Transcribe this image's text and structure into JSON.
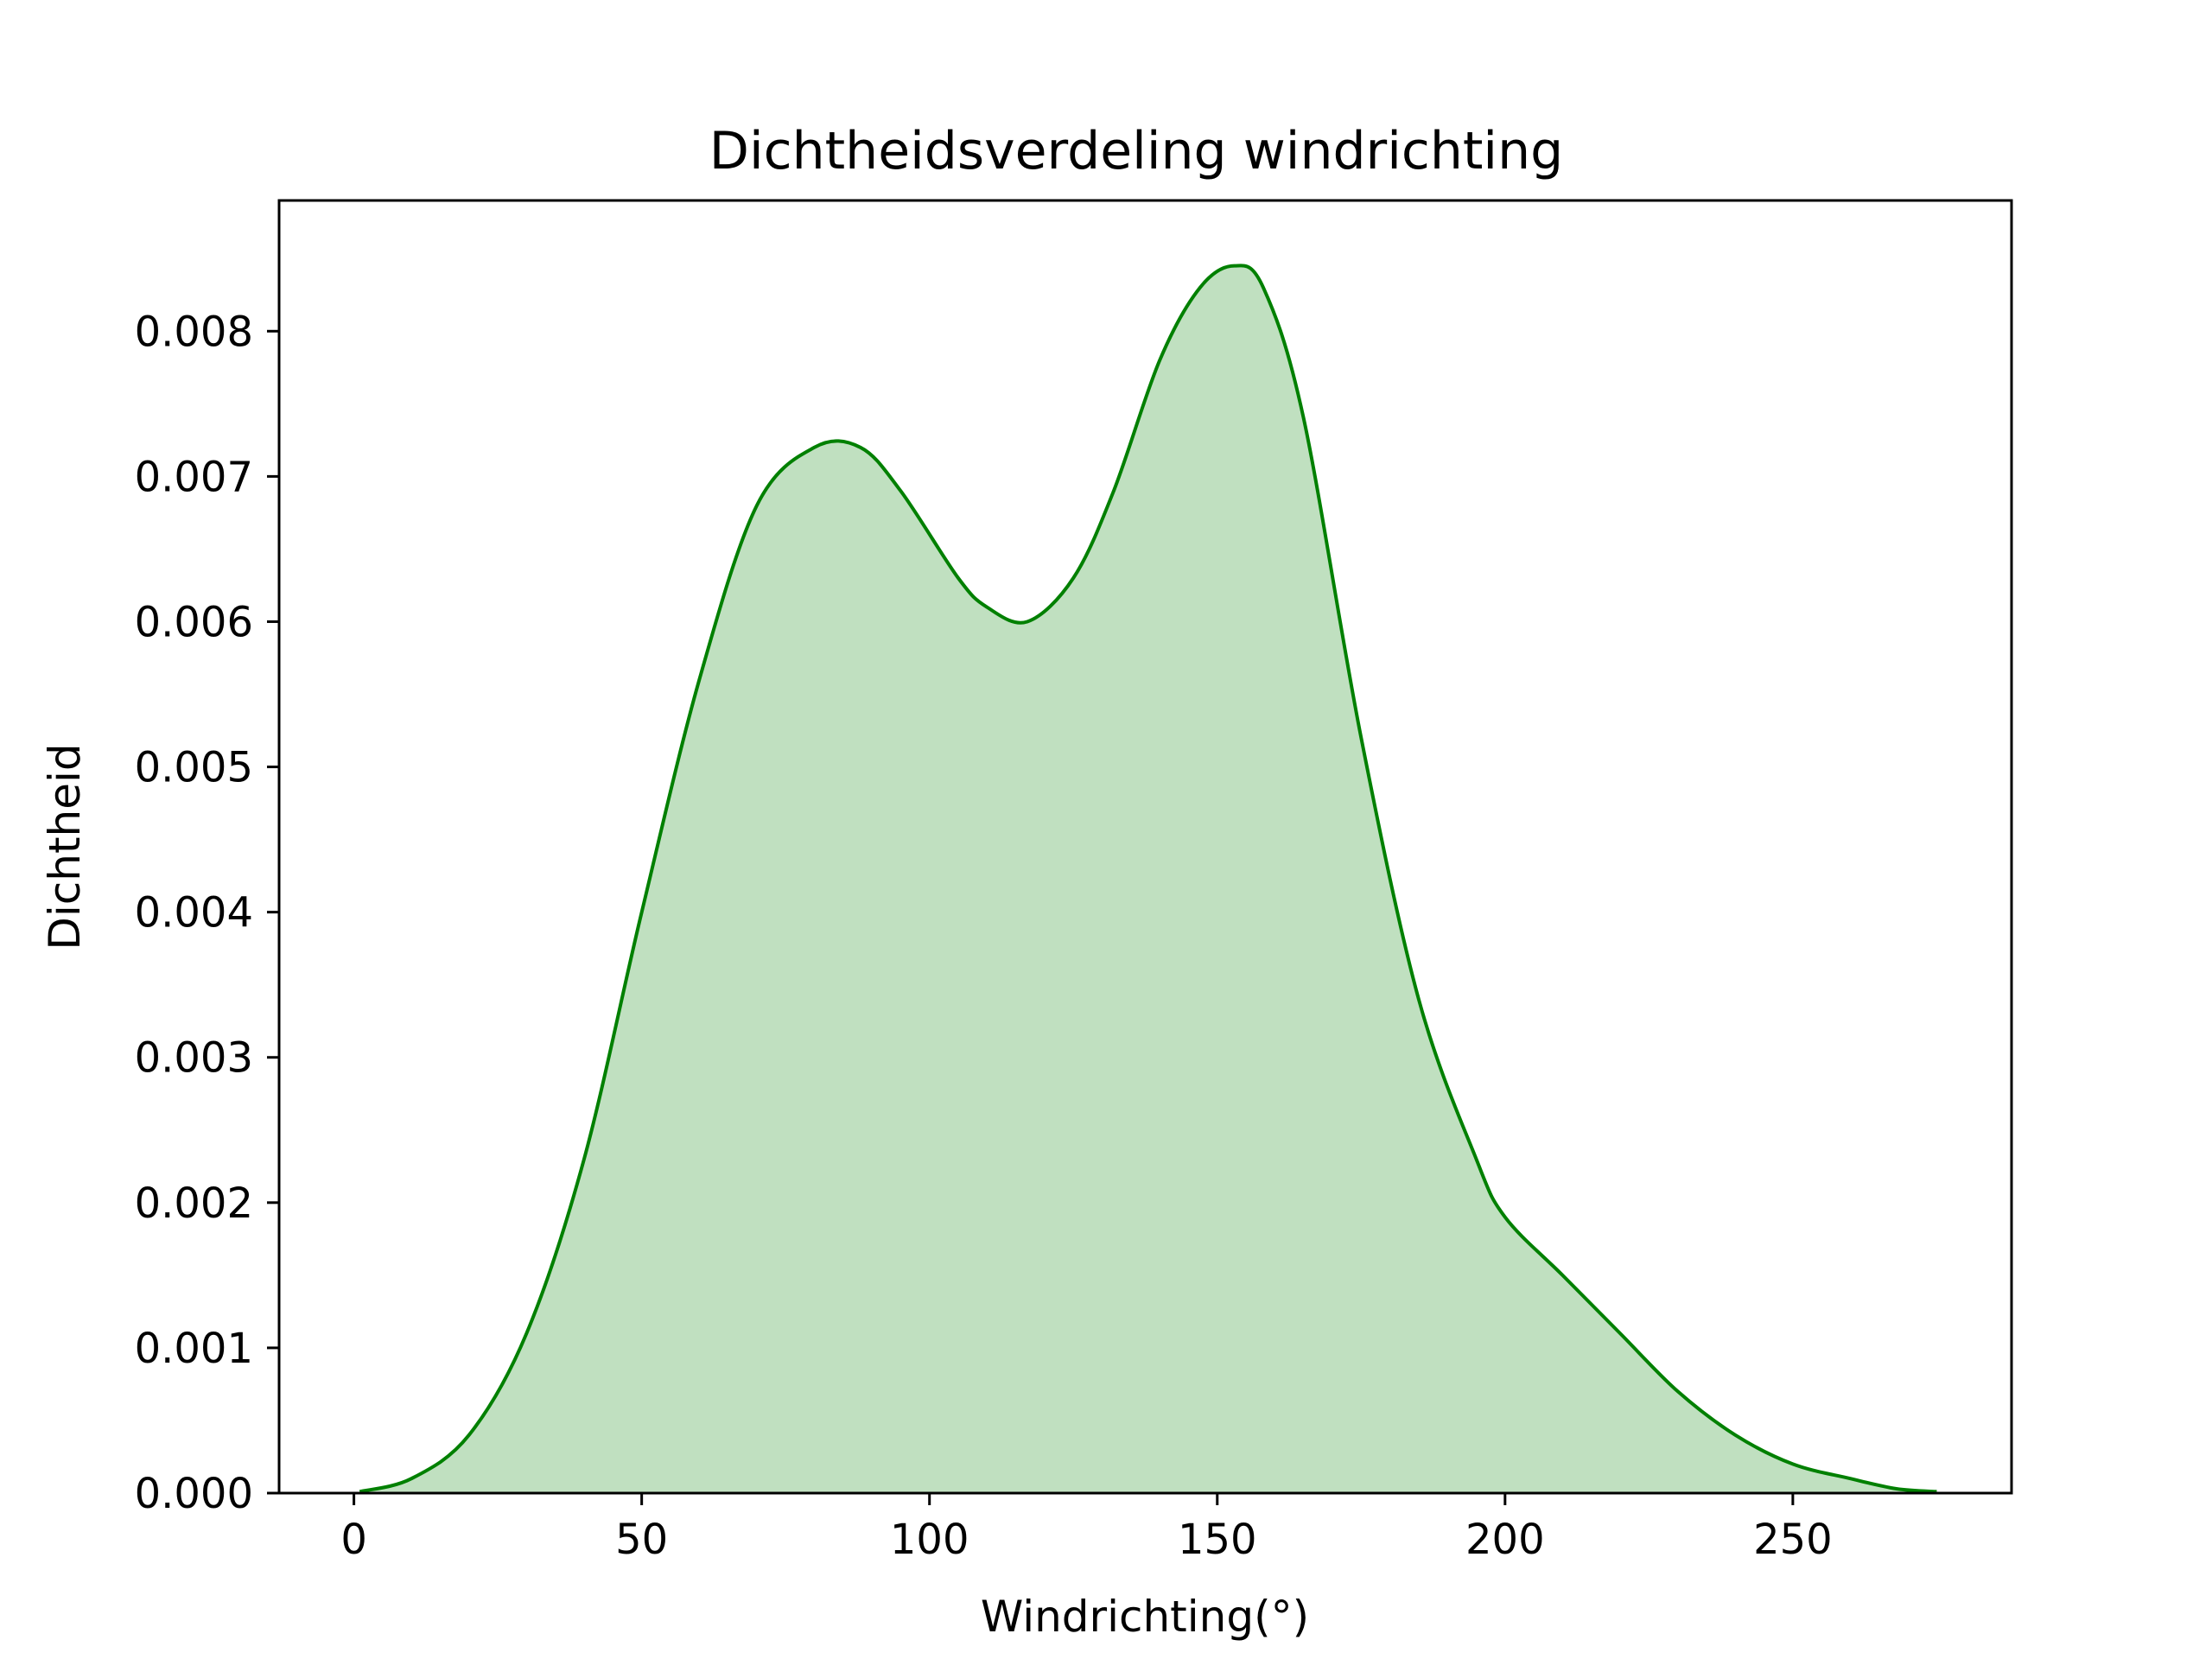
{
  "chart_data": {
    "type": "area",
    "title": "Dichtheidsverdeling windrichting",
    "xlabel": "Windrichting(°)",
    "ylabel": "Dichtheid",
    "xlim": [
      -13,
      288
    ],
    "ylim": [
      0,
      0.0089
    ],
    "x_ticks": [
      0,
      50,
      100,
      150,
      200,
      250
    ],
    "x_tick_labels": [
      "0",
      "50",
      "100",
      "150",
      "200",
      "250"
    ],
    "y_ticks": [
      0,
      0.001,
      0.002,
      0.003,
      0.004,
      0.005,
      0.006,
      0.007,
      0.008
    ],
    "y_tick_labels": [
      "0.000",
      "0.001",
      "0.002",
      "0.003",
      "0.004",
      "0.005",
      "0.006",
      "0.007",
      "0.008"
    ],
    "grid": false,
    "legend": "none",
    "colors": {
      "line": "#008000",
      "fill": "#c0e0c0"
    },
    "series": [
      {
        "x": [
          1,
          10,
          20,
          30,
          40,
          50,
          60,
          70,
          80,
          88,
          95,
          105,
          110,
          117,
          125,
          132,
          140,
          147,
          153,
          158,
          165,
          175,
          185,
          195,
          200,
          210,
          220,
          230,
          240,
          250,
          260,
          268,
          275
        ],
        "y": [
          1e-05,
          0.0001,
          0.0004,
          0.0011,
          0.0023,
          0.004,
          0.0056,
          0.0068,
          0.0072,
          0.0072,
          0.0069,
          0.0063,
          0.0061,
          0.006,
          0.0063,
          0.0069,
          0.0078,
          0.0083,
          0.00845,
          0.0083,
          0.0074,
          0.0052,
          0.0034,
          0.0023,
          0.0019,
          0.0015,
          0.0011,
          0.0007,
          0.0004,
          0.0002,
          0.0001,
          3e-05,
          1e-05
        ]
      }
    ]
  }
}
